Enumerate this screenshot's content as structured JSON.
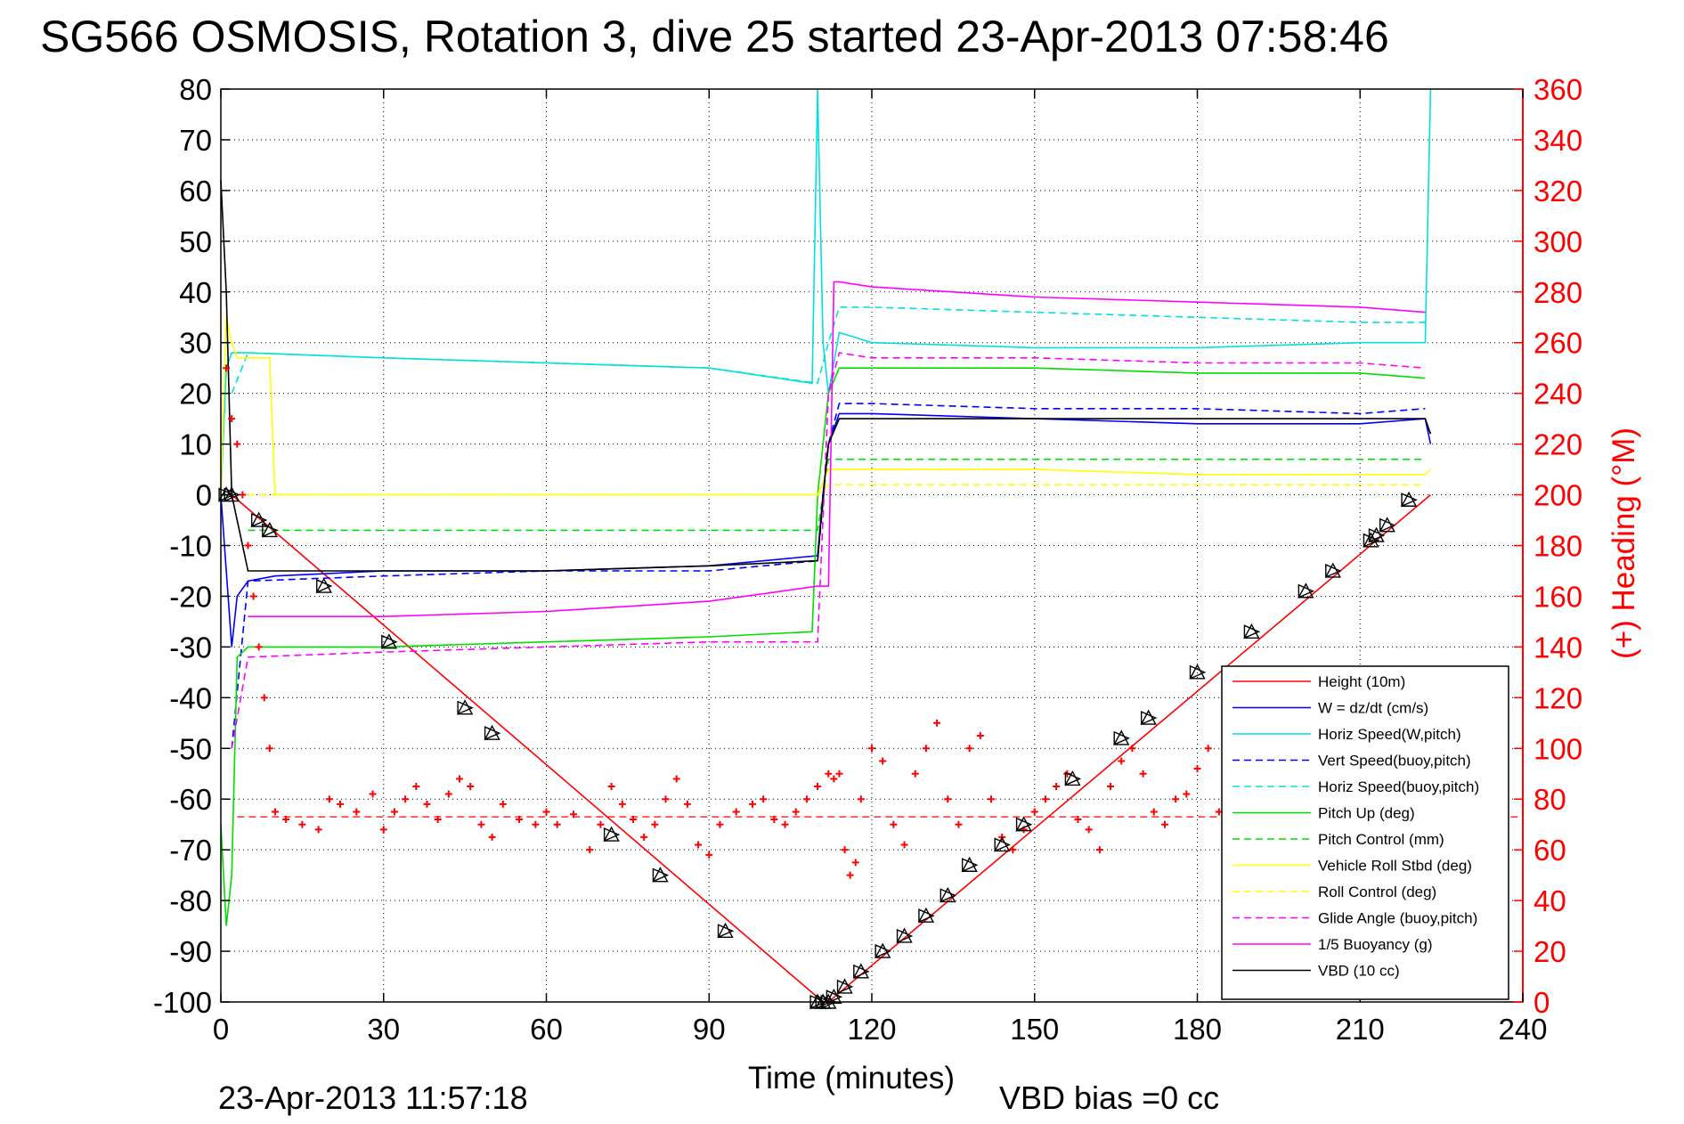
{
  "chart_data": {
    "type": "line",
    "title": "SG566 OSMOSIS, Rotation 3, dive 25 started 23-Apr-2013 07:58:46",
    "xlabel": "Time (minutes)",
    "ylabel": "",
    "ylabel_right": "(+) Heading (°M)",
    "xlim": [
      0,
      240
    ],
    "ylim": [
      -100,
      80
    ],
    "ylim_right": [
      0,
      360
    ],
    "x_ticks": [
      "0",
      "30",
      "60",
      "90",
      "120",
      "150",
      "180",
      "210",
      "240"
    ],
    "y_ticks": [
      "80",
      "70",
      "60",
      "50",
      "40",
      "30",
      "20",
      "10",
      "0",
      "-10",
      "-20",
      "-30",
      "-40",
      "-50",
      "-60",
      "-70",
      "-80",
      "-90",
      "-100"
    ],
    "y_ticks_right": [
      "360",
      "340",
      "320",
      "300",
      "280",
      "260",
      "240",
      "220",
      "200",
      "180",
      "160",
      "140",
      "120",
      "100",
      "80",
      "60",
      "40",
      "20",
      "0"
    ],
    "grid": true,
    "legend_position": "bottom-right",
    "footer_left": "23-Apr-2013 11:57:18",
    "footer_right": "VBD bias =0 cc",
    "series": [
      {
        "name": "Height (10m)",
        "color": "#ff0000",
        "style": "solid",
        "x": [
          0,
          2,
          111,
          112,
          223
        ],
        "y": [
          0,
          0,
          -100,
          -100,
          0
        ]
      },
      {
        "name": "W = dz/dt (cm/s)",
        "color": "#0000ff",
        "style": "solid",
        "x": [
          0,
          2,
          3,
          5,
          10,
          30,
          60,
          90,
          110,
          111,
          112,
          114,
          120,
          150,
          180,
          210,
          222,
          223
        ],
        "y": [
          0,
          -30,
          -20,
          -17,
          -16,
          -15,
          -15,
          -14,
          -12,
          0,
          10,
          16,
          16,
          15,
          14,
          14,
          15,
          10
        ]
      },
      {
        "name": "Horiz Speed(W,pitch)",
        "color": "#00e0e0",
        "style": "solid",
        "x": [
          0,
          1,
          2,
          5,
          30,
          60,
          90,
          109,
          110,
          111,
          112,
          114,
          120,
          150,
          180,
          210,
          222,
          223
        ],
        "y": [
          0,
          25,
          28,
          28,
          27,
          26,
          25,
          22,
          80,
          30,
          20,
          32,
          30,
          29,
          29,
          30,
          30,
          80
        ]
      },
      {
        "name": "Vert Speed(buoy,pitch)",
        "color": "#0000ff",
        "style": "dashed",
        "x": [
          2,
          5,
          30,
          60,
          90,
          110,
          112,
          114,
          120,
          150,
          180,
          210,
          222
        ],
        "y": [
          -50,
          -17,
          -16,
          -15,
          -15,
          -13,
          10,
          18,
          18,
          17,
          17,
          16,
          17
        ]
      },
      {
        "name": "Horiz Speed(buoy,pitch)",
        "color": "#00e0e0",
        "style": "dashed",
        "x": [
          2,
          5,
          30,
          60,
          90,
          110,
          112,
          114,
          120,
          150,
          180,
          210,
          222
        ],
        "y": [
          20,
          28,
          27,
          26,
          25,
          22,
          30,
          37,
          37,
          36,
          35,
          34,
          34
        ]
      },
      {
        "name": "Pitch Up (deg)",
        "color": "#00dd00",
        "style": "solid",
        "x": [
          0,
          1,
          2,
          3,
          5,
          30,
          60,
          90,
          109,
          110,
          112,
          114,
          120,
          150,
          180,
          210,
          222
        ],
        "y": [
          -65,
          -85,
          -75,
          -32,
          -30,
          -30,
          -29,
          -28,
          -27,
          0,
          20,
          25,
          25,
          25,
          24,
          24,
          23
        ]
      },
      {
        "name": "Pitch Control (mm)",
        "color": "#00dd00",
        "style": "dashed",
        "x": [
          5,
          30,
          60,
          90,
          110,
          112,
          150,
          180,
          210,
          222
        ],
        "y": [
          -7,
          -7,
          -7,
          -7,
          -7,
          7,
          7,
          7,
          7,
          7
        ]
      },
      {
        "name": "Vehicle Roll Stbd (deg)",
        "color": "#ffff00",
        "style": "solid",
        "x": [
          0,
          1,
          2,
          3,
          5,
          9,
          10,
          30,
          60,
          90,
          110,
          112,
          114,
          150,
          180,
          210,
          222,
          223
        ],
        "y": [
          0,
          35,
          30,
          27,
          27,
          27,
          0,
          0,
          0,
          0,
          0,
          5,
          5,
          5,
          4,
          4,
          4,
          5
        ]
      },
      {
        "name": "Roll Control (deg)",
        "color": "#ffff00",
        "style": "dashed",
        "x": [
          5,
          30,
          60,
          90,
          110,
          112,
          150,
          180,
          210,
          222
        ],
        "y": [
          0,
          0,
          0,
          0,
          0,
          2,
          2,
          2,
          2,
          2
        ]
      },
      {
        "name": "Glide Angle (buoy,pitch)",
        "color": "#ff00ff",
        "style": "dashed",
        "x": [
          2,
          5,
          30,
          60,
          90,
          110,
          112,
          114,
          120,
          150,
          180,
          210,
          222
        ],
        "y": [
          -50,
          -32,
          -31,
          -30,
          -29,
          -29,
          20,
          28,
          27,
          27,
          26,
          26,
          25
        ]
      },
      {
        "name": "1/5 Buoyancy (g)",
        "color": "#ff00ff",
        "style": "solid",
        "x": [
          5,
          30,
          60,
          90,
          110,
          112,
          113,
          114,
          120,
          150,
          180,
          210,
          222
        ],
        "y": [
          -24,
          -24,
          -23,
          -21,
          -18,
          -18,
          42,
          42,
          41,
          39,
          38,
          37,
          36
        ]
      },
      {
        "name": "VBD (10 cc)",
        "color": "#000000",
        "style": "solid",
        "x": [
          0,
          1,
          2,
          5,
          60,
          90,
          110,
          111,
          112,
          114,
          120,
          150,
          180,
          210,
          222,
          223
        ],
        "y": [
          62,
          40,
          0,
          -15,
          -15,
          -14,
          -13,
          0,
          10,
          15,
          15,
          15,
          15,
          15,
          15,
          12
        ]
      }
    ],
    "heading_series": {
      "name": "(+) Heading",
      "color": "#ff0000",
      "axis": "right",
      "x": [
        1,
        2,
        3,
        4,
        5,
        6,
        7,
        8,
        9,
        10,
        12,
        15,
        18,
        20,
        22,
        25,
        28,
        30,
        32,
        34,
        36,
        38,
        40,
        42,
        44,
        46,
        48,
        50,
        52,
        55,
        58,
        60,
        62,
        65,
        68,
        70,
        72,
        74,
        76,
        78,
        80,
        82,
        84,
        86,
        88,
        90,
        92,
        95,
        98,
        100,
        102,
        104,
        106,
        108,
        110,
        112,
        113,
        114,
        115,
        116,
        117,
        118,
        120,
        122,
        124,
        126,
        128,
        130,
        132,
        134,
        136,
        138,
        140,
        142,
        144,
        146,
        148,
        150,
        152,
        154,
        156,
        158,
        160,
        162,
        164,
        166,
        168,
        170,
        172,
        174,
        176,
        178,
        180,
        182,
        184
      ],
      "y": [
        250,
        230,
        220,
        200,
        180,
        160,
        140,
        120,
        100,
        75,
        72,
        70,
        68,
        80,
        78,
        75,
        82,
        68,
        75,
        80,
        85,
        78,
        72,
        82,
        88,
        85,
        70,
        65,
        78,
        72,
        70,
        75,
        70,
        74,
        60,
        70,
        85,
        78,
        72,
        65,
        70,
        80,
        88,
        78,
        62,
        58,
        70,
        75,
        78,
        80,
        72,
        70,
        75,
        80,
        85,
        90,
        88,
        90,
        60,
        50,
        55,
        80,
        100,
        95,
        70,
        62,
        90,
        100,
        110,
        80,
        70,
        100,
        105,
        80,
        65,
        60,
        68,
        75,
        80,
        85,
        90,
        72,
        68,
        60,
        85,
        95,
        100,
        90,
        75,
        70,
        80,
        82,
        92,
        100,
        75
      ]
    },
    "heading_reference": {
      "y": 73,
      "style": "dashed",
      "color": "#ff0000"
    },
    "markers": {
      "type": "triangle",
      "x": [
        1,
        2,
        7,
        9,
        19,
        31,
        45,
        50,
        72,
        81,
        93,
        110,
        111,
        112,
        113,
        115,
        118,
        122,
        126,
        130,
        134,
        138,
        144,
        148,
        157,
        166,
        171,
        180,
        190,
        200,
        205,
        212,
        213,
        215,
        219
      ],
      "y": [
        0,
        0,
        -5,
        -7,
        -18,
        -29,
        -42,
        -47,
        -67,
        -75,
        -86,
        -100,
        -100,
        -100,
        -99,
        -97,
        -94,
        -90,
        -87,
        -83,
        -79,
        -73,
        -69,
        -65,
        -56,
        -48,
        -44,
        -35,
        -27,
        -19,
        -15,
        -9,
        -8,
        -6,
        -1
      ]
    }
  }
}
